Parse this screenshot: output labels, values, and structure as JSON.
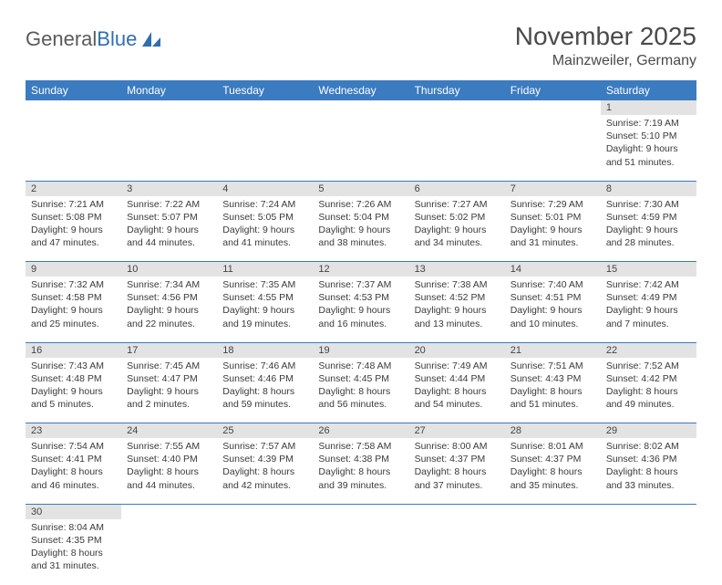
{
  "logo": {
    "text1": "General",
    "text2": "Blue"
  },
  "title": "November 2025",
  "location": "Mainzweiler, Germany",
  "header_color": "#3b7bbf",
  "daynum_bg": "#e3e3e3",
  "divider_color": "#3b7bbf",
  "weekdays": [
    "Sunday",
    "Monday",
    "Tuesday",
    "Wednesday",
    "Thursday",
    "Friday",
    "Saturday"
  ],
  "weeks": [
    [
      null,
      null,
      null,
      null,
      null,
      null,
      {
        "n": "1",
        "sr": "Sunrise: 7:19 AM",
        "ss": "Sunset: 5:10 PM",
        "dl": "Daylight: 9 hours and 51 minutes."
      }
    ],
    [
      {
        "n": "2",
        "sr": "Sunrise: 7:21 AM",
        "ss": "Sunset: 5:08 PM",
        "dl": "Daylight: 9 hours and 47 minutes."
      },
      {
        "n": "3",
        "sr": "Sunrise: 7:22 AM",
        "ss": "Sunset: 5:07 PM",
        "dl": "Daylight: 9 hours and 44 minutes."
      },
      {
        "n": "4",
        "sr": "Sunrise: 7:24 AM",
        "ss": "Sunset: 5:05 PM",
        "dl": "Daylight: 9 hours and 41 minutes."
      },
      {
        "n": "5",
        "sr": "Sunrise: 7:26 AM",
        "ss": "Sunset: 5:04 PM",
        "dl": "Daylight: 9 hours and 38 minutes."
      },
      {
        "n": "6",
        "sr": "Sunrise: 7:27 AM",
        "ss": "Sunset: 5:02 PM",
        "dl": "Daylight: 9 hours and 34 minutes."
      },
      {
        "n": "7",
        "sr": "Sunrise: 7:29 AM",
        "ss": "Sunset: 5:01 PM",
        "dl": "Daylight: 9 hours and 31 minutes."
      },
      {
        "n": "8",
        "sr": "Sunrise: 7:30 AM",
        "ss": "Sunset: 4:59 PM",
        "dl": "Daylight: 9 hours and 28 minutes."
      }
    ],
    [
      {
        "n": "9",
        "sr": "Sunrise: 7:32 AM",
        "ss": "Sunset: 4:58 PM",
        "dl": "Daylight: 9 hours and 25 minutes."
      },
      {
        "n": "10",
        "sr": "Sunrise: 7:34 AM",
        "ss": "Sunset: 4:56 PM",
        "dl": "Daylight: 9 hours and 22 minutes."
      },
      {
        "n": "11",
        "sr": "Sunrise: 7:35 AM",
        "ss": "Sunset: 4:55 PM",
        "dl": "Daylight: 9 hours and 19 minutes."
      },
      {
        "n": "12",
        "sr": "Sunrise: 7:37 AM",
        "ss": "Sunset: 4:53 PM",
        "dl": "Daylight: 9 hours and 16 minutes."
      },
      {
        "n": "13",
        "sr": "Sunrise: 7:38 AM",
        "ss": "Sunset: 4:52 PM",
        "dl": "Daylight: 9 hours and 13 minutes."
      },
      {
        "n": "14",
        "sr": "Sunrise: 7:40 AM",
        "ss": "Sunset: 4:51 PM",
        "dl": "Daylight: 9 hours and 10 minutes."
      },
      {
        "n": "15",
        "sr": "Sunrise: 7:42 AM",
        "ss": "Sunset: 4:49 PM",
        "dl": "Daylight: 9 hours and 7 minutes."
      }
    ],
    [
      {
        "n": "16",
        "sr": "Sunrise: 7:43 AM",
        "ss": "Sunset: 4:48 PM",
        "dl": "Daylight: 9 hours and 5 minutes."
      },
      {
        "n": "17",
        "sr": "Sunrise: 7:45 AM",
        "ss": "Sunset: 4:47 PM",
        "dl": "Daylight: 9 hours and 2 minutes."
      },
      {
        "n": "18",
        "sr": "Sunrise: 7:46 AM",
        "ss": "Sunset: 4:46 PM",
        "dl": "Daylight: 8 hours and 59 minutes."
      },
      {
        "n": "19",
        "sr": "Sunrise: 7:48 AM",
        "ss": "Sunset: 4:45 PM",
        "dl": "Daylight: 8 hours and 56 minutes."
      },
      {
        "n": "20",
        "sr": "Sunrise: 7:49 AM",
        "ss": "Sunset: 4:44 PM",
        "dl": "Daylight: 8 hours and 54 minutes."
      },
      {
        "n": "21",
        "sr": "Sunrise: 7:51 AM",
        "ss": "Sunset: 4:43 PM",
        "dl": "Daylight: 8 hours and 51 minutes."
      },
      {
        "n": "22",
        "sr": "Sunrise: 7:52 AM",
        "ss": "Sunset: 4:42 PM",
        "dl": "Daylight: 8 hours and 49 minutes."
      }
    ],
    [
      {
        "n": "23",
        "sr": "Sunrise: 7:54 AM",
        "ss": "Sunset: 4:41 PM",
        "dl": "Daylight: 8 hours and 46 minutes."
      },
      {
        "n": "24",
        "sr": "Sunrise: 7:55 AM",
        "ss": "Sunset: 4:40 PM",
        "dl": "Daylight: 8 hours and 44 minutes."
      },
      {
        "n": "25",
        "sr": "Sunrise: 7:57 AM",
        "ss": "Sunset: 4:39 PM",
        "dl": "Daylight: 8 hours and 42 minutes."
      },
      {
        "n": "26",
        "sr": "Sunrise: 7:58 AM",
        "ss": "Sunset: 4:38 PM",
        "dl": "Daylight: 8 hours and 39 minutes."
      },
      {
        "n": "27",
        "sr": "Sunrise: 8:00 AM",
        "ss": "Sunset: 4:37 PM",
        "dl": "Daylight: 8 hours and 37 minutes."
      },
      {
        "n": "28",
        "sr": "Sunrise: 8:01 AM",
        "ss": "Sunset: 4:37 PM",
        "dl": "Daylight: 8 hours and 35 minutes."
      },
      {
        "n": "29",
        "sr": "Sunrise: 8:02 AM",
        "ss": "Sunset: 4:36 PM",
        "dl": "Daylight: 8 hours and 33 minutes."
      }
    ],
    [
      {
        "n": "30",
        "sr": "Sunrise: 8:04 AM",
        "ss": "Sunset: 4:35 PM",
        "dl": "Daylight: 8 hours and 31 minutes."
      },
      null,
      null,
      null,
      null,
      null,
      null
    ]
  ]
}
